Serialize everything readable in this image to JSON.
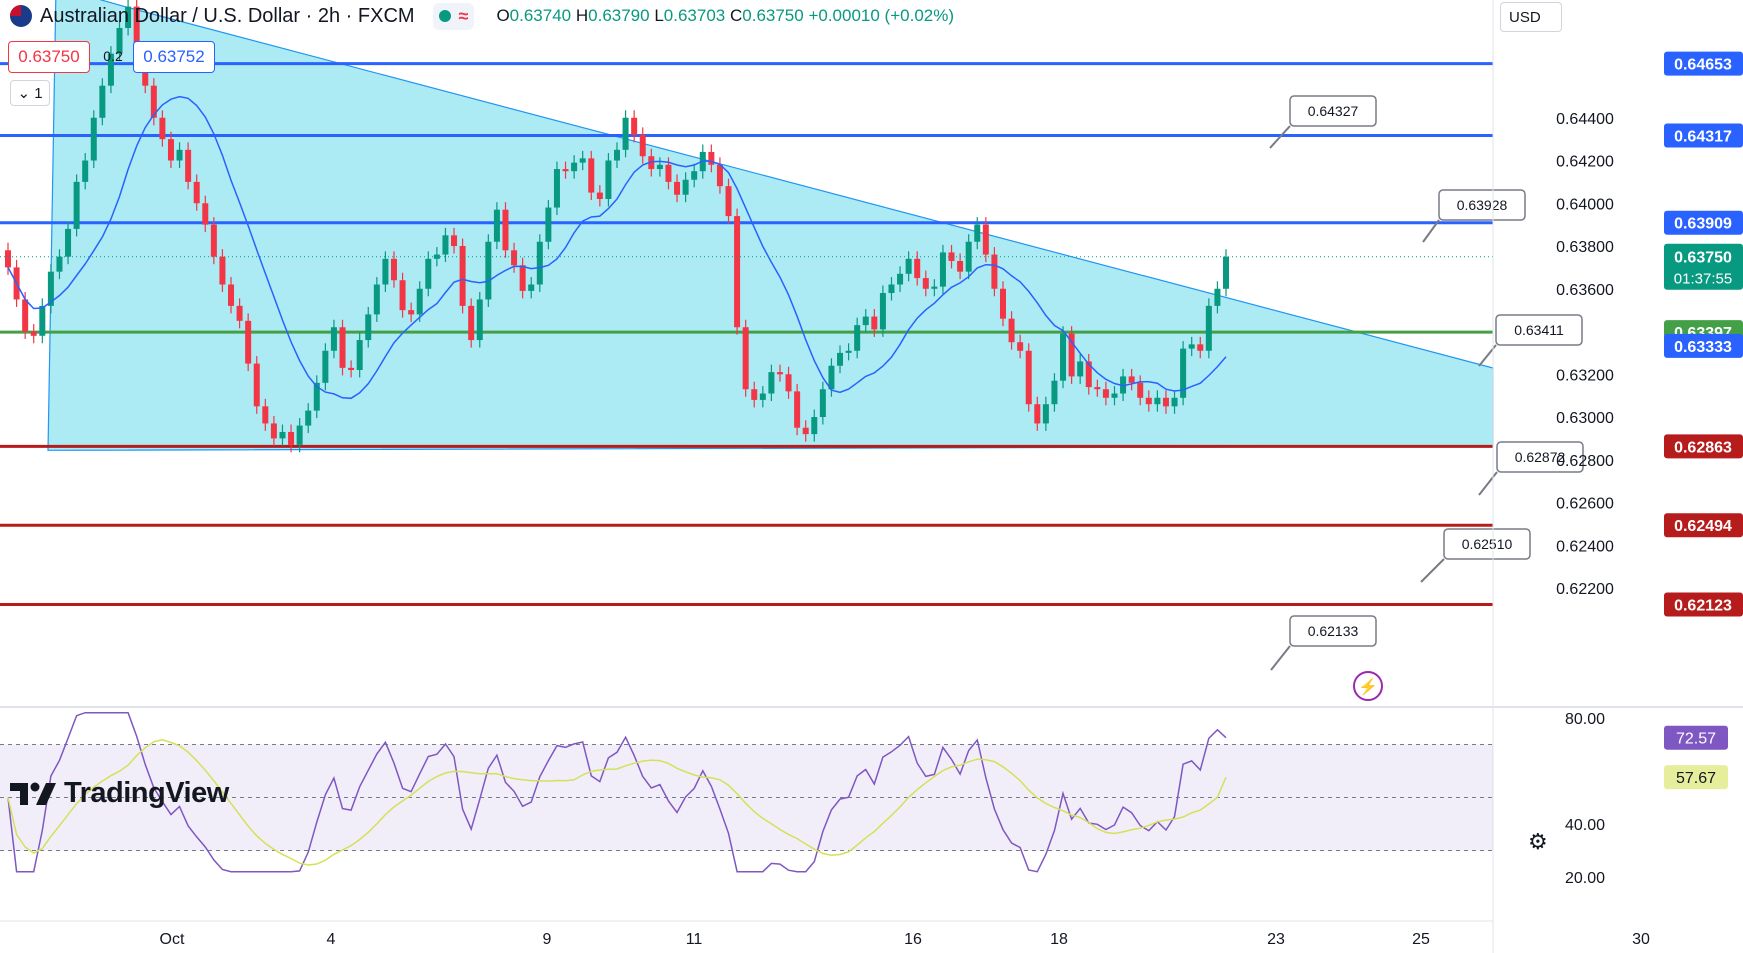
{
  "header": {
    "symbol_title": "Australian Dollar / U.S. Dollar · 2h · FXCM",
    "ohlc": {
      "o_label": "O",
      "o": "0.63740",
      "h_label": "H",
      "h": "0.63790",
      "l_label": "L",
      "l": "0.63703",
      "c_label": "C",
      "c": "0.63750",
      "change": "+0.00010 (+0.02%)"
    }
  },
  "trade": {
    "sell_price": "0.63750",
    "spread": "0.2",
    "buy_price": "0.63752"
  },
  "collapse_label": "1",
  "currency": "USD",
  "logo_text": "TradingView",
  "colors": {
    "up": "#089981",
    "down": "#f23645",
    "ma": "#2962ff",
    "triangle_fill": "#9ee6f2",
    "triangle_line": "#2196f3",
    "resist": "#2962ff",
    "support_green": "#43a047",
    "support_red": "#b71c1c",
    "rsi": "#7e57c2",
    "rsi_ma": "#d4e157"
  },
  "price_axis": {
    "ticks": [
      "0.64400",
      "0.64200",
      "0.64000",
      "0.63800",
      "0.63600",
      "0.63200",
      "0.63000",
      "0.62800",
      "0.62600",
      "0.62400",
      "0.62200"
    ],
    "last_price": "0.63750",
    "countdown": "01:37:55"
  },
  "levels": [
    {
      "price": "0.64653",
      "kind": "resist"
    },
    {
      "price": "0.64317",
      "kind": "resist"
    },
    {
      "price": "0.63909",
      "kind": "resist"
    },
    {
      "price": "0.63397",
      "kind": "support_green"
    },
    {
      "price": "0.63333",
      "kind": "trend"
    },
    {
      "price": "0.62863",
      "kind": "support_red"
    },
    {
      "price": "0.62494",
      "kind": "support_red"
    },
    {
      "price": "0.62123",
      "kind": "support_red"
    }
  ],
  "callouts": [
    "0.64327",
    "0.63928",
    "0.63411",
    "0.62872",
    "0.62510",
    "0.62133"
  ],
  "rsi_axis": {
    "ticks": [
      "80.00",
      "40.00",
      "20.00"
    ],
    "rsi_value": "72.57",
    "rsi_ma_value": "57.67"
  },
  "time_axis": [
    "Oct",
    "4",
    "9",
    "11",
    "16",
    "18",
    "23",
    "25",
    "30"
  ],
  "chart_data": {
    "type": "candlestick",
    "pair": "AUD/USD",
    "timeframe": "2h",
    "trend_line": {
      "from_price": 0.6487,
      "to_price": 0.6333
    },
    "moving_average_end": 0.6335,
    "rsi": {
      "last": 72.57,
      "ma_last": 57.67,
      "bands": [
        70,
        30
      ],
      "mid": 50
    },
    "closes": [
      0.637,
      0.6355,
      0.634,
      0.6338,
      0.6352,
      0.6368,
      0.6375,
      0.6388,
      0.641,
      0.642,
      0.644,
      0.6455,
      0.647,
      0.6482,
      0.6492,
      0.647,
      0.6455,
      0.644,
      0.643,
      0.642,
      0.6425,
      0.641,
      0.64,
      0.639,
      0.6375,
      0.6362,
      0.6352,
      0.6345,
      0.6325,
      0.6305,
      0.6297,
      0.629,
      0.6293,
      0.6287,
      0.6296,
      0.6303,
      0.6316,
      0.6331,
      0.6342,
      0.6323,
      0.6322,
      0.6336,
      0.6348,
      0.6362,
      0.6374,
      0.6364,
      0.635,
      0.6348,
      0.636,
      0.6374,
      0.6376,
      0.6385,
      0.638,
      0.6352,
      0.6336,
      0.6355,
      0.6382,
      0.6397,
      0.6378,
      0.6371,
      0.6359,
      0.6362,
      0.6382,
      0.6398,
      0.6416,
      0.6415,
      0.6419,
      0.6421,
      0.6405,
      0.6402,
      0.642,
      0.6425,
      0.644,
      0.6432,
      0.6422,
      0.6416,
      0.6418,
      0.641,
      0.6404,
      0.6411,
      0.6415,
      0.6424,
      0.6418,
      0.6408,
      0.6394,
      0.6342,
      0.6313,
      0.6308,
      0.6311,
      0.6321,
      0.632,
      0.6312,
      0.6295,
      0.6292,
      0.63,
      0.6313,
      0.6324,
      0.633,
      0.6331,
      0.6343,
      0.6347,
      0.6341,
      0.6358,
      0.6362,
      0.6367,
      0.6374,
      0.6365,
      0.636,
      0.6361,
      0.6377,
      0.6373,
      0.6368,
      0.6382,
      0.639,
      0.6376,
      0.636,
      0.6346,
      0.6335,
      0.6331,
      0.6306,
      0.6297,
      0.6306,
      0.6317,
      0.6339,
      0.6319,
      0.6326,
      0.6314,
      0.6313,
      0.6309,
      0.6311,
      0.6319,
      0.6316,
      0.6309,
      0.6306,
      0.6309,
      0.6305,
      0.6309,
      0.6332,
      0.6334,
      0.6331,
      0.6352,
      0.636,
      0.6375
    ]
  }
}
